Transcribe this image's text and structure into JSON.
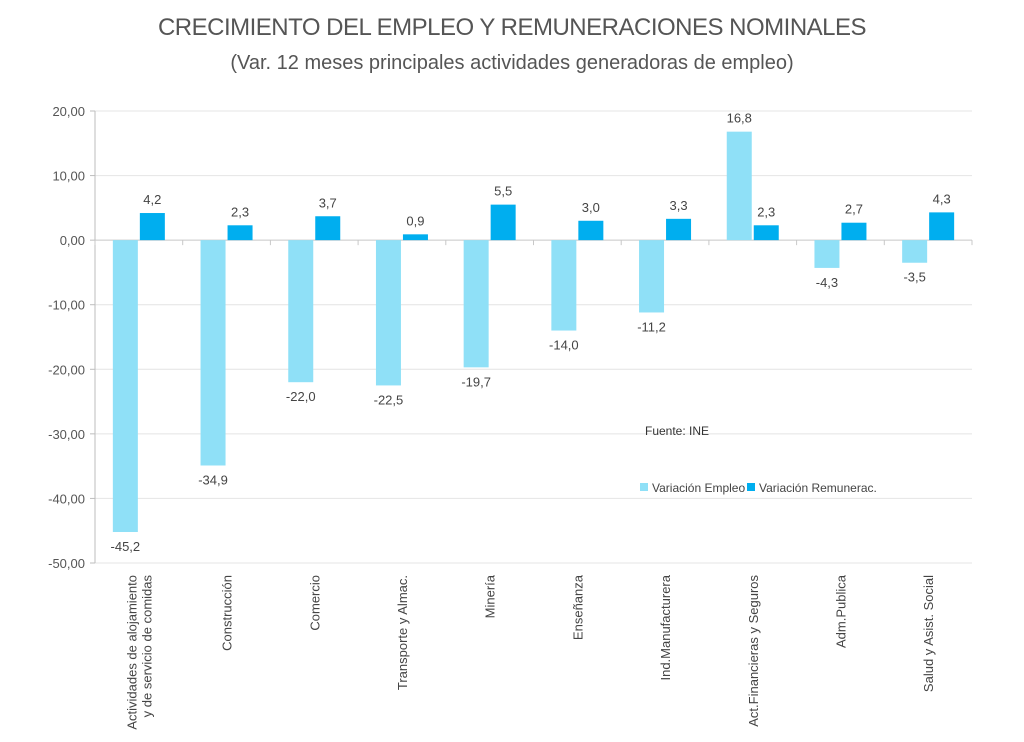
{
  "chart_data": {
    "type": "bar",
    "title": "CRECIMIENTO DEL EMPLEO Y REMUNERACIONES NOMINALES",
    "subtitle": "(Var. 12 meses principales actividades generadoras de empleo)",
    "categories": [
      [
        "Actividades de alojamiento",
        "y de servicio de comidas"
      ],
      [
        "Construcción"
      ],
      [
        "Comercio"
      ],
      [
        "Transporte y Almac."
      ],
      [
        "Minería"
      ],
      [
        "Enseñanza"
      ],
      [
        "Ind.Manufacturera"
      ],
      [
        "Act.Financieras y Seguros"
      ],
      [
        "Adm.Publica"
      ],
      [
        "Salud y Asist. Social"
      ]
    ],
    "series": [
      {
        "name": "Variación Empleo",
        "color": "#8fe0f7",
        "values": [
          -45.2,
          -34.9,
          -22.0,
          -22.5,
          -19.7,
          -14.0,
          -11.2,
          16.8,
          -4.3,
          -3.5
        ],
        "labels": [
          "-45,2",
          "-34,9",
          "-22,0",
          "-22,5",
          "-19,7",
          "-14,0",
          "-11,2",
          "16,8",
          "-4,3",
          "-3,5"
        ]
      },
      {
        "name": "Variación Remunerac.",
        "color": "#00aeef",
        "values": [
          4.2,
          2.3,
          3.7,
          0.9,
          5.5,
          3.0,
          3.3,
          2.3,
          2.7,
          4.3
        ],
        "labels": [
          "4,2",
          "2,3",
          "3,7",
          "0,9",
          "5,5",
          "3,0",
          "3,3",
          "2,3",
          "2,7",
          "4,3"
        ]
      }
    ],
    "ylim": [
      -50,
      20
    ],
    "yticks": [
      20,
      10,
      0,
      -10,
      -20,
      -30,
      -40,
      -50
    ],
    "ytick_labels": [
      "20,00",
      "10,00",
      "0,00",
      "-10,00",
      "-20,00",
      "-30,00",
      "-40,00",
      "-50,00"
    ],
    "grid": true,
    "legend_position": "right",
    "source_note": "Fuente: INE"
  }
}
